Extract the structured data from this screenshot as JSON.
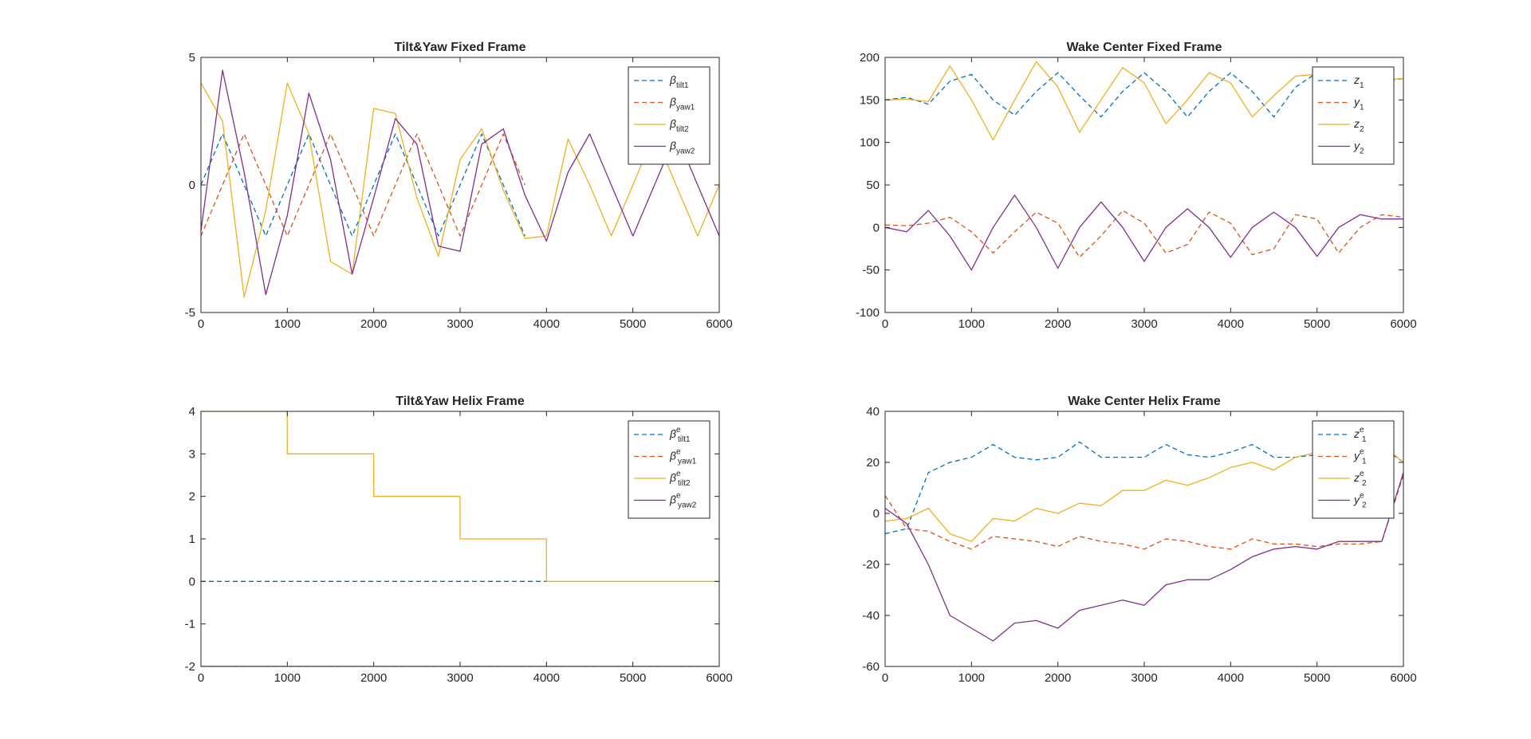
{
  "colors": {
    "blue": "#0072BD",
    "orange": "#D95319",
    "yellow": "#EDB120",
    "purple": "#7E2F8E",
    "axis": "#262626",
    "background": "#ffffff"
  },
  "chart_data": [
    {
      "type": "line",
      "title": "Tilt&Yaw Fixed Frame",
      "xlabel": "",
      "ylabel": "",
      "xlim": [
        0,
        6000
      ],
      "ylim": [
        -5,
        5
      ],
      "xticks": [
        "0",
        "1000",
        "2000",
        "3000",
        "4000",
        "5000",
        "6000"
      ],
      "yticks": [
        "-5",
        "0",
        "5"
      ],
      "grid": false,
      "legend_position": "top-right",
      "x": [
        0,
        250,
        500,
        750,
        1000,
        1250,
        1500,
        1750,
        2000,
        2250,
        2500,
        2750,
        3000,
        3250,
        3500,
        3750,
        4000,
        4250,
        4500,
        4750,
        5000,
        5250,
        5500,
        5750,
        6000
      ],
      "series": [
        {
          "legend": "β",
          "sub": "tilt1",
          "sup": "",
          "dash": true,
          "color": "blue",
          "values": [
            0,
            2,
            0,
            -2,
            0,
            2,
            0,
            -2,
            0,
            2,
            0,
            -2,
            0,
            2,
            0,
            -2,
            null,
            null,
            null,
            null,
            null,
            null,
            null,
            null,
            null
          ]
        },
        {
          "legend": "β",
          "sub": "yaw1",
          "sup": "",
          "dash": true,
          "color": "orange",
          "values": [
            -2,
            0,
            2,
            0,
            -2,
            0,
            2,
            0,
            -2,
            0,
            2,
            0,
            -2,
            0,
            2,
            0,
            null,
            null,
            null,
            null,
            null,
            null,
            null,
            null,
            null
          ]
        },
        {
          "legend": "β",
          "sub": "tilt2",
          "sup": "",
          "dash": false,
          "color": "yellow",
          "values": [
            4.0,
            2.5,
            -4.4,
            -1.0,
            4.0,
            2.0,
            -3.0,
            -3.5,
            3.0,
            2.8,
            -0.5,
            -2.8,
            1.0,
            2.2,
            -0.2,
            -2.1,
            -2.0,
            1.8,
            0.0,
            -2.0,
            0.0,
            2.0,
            0.0,
            -2.0,
            0.0
          ]
        },
        {
          "legend": "β",
          "sub": "yaw2",
          "sup": "",
          "dash": false,
          "color": "purple",
          "values": [
            -1.8,
            4.5,
            0.5,
            -4.3,
            -1.2,
            3.6,
            1.0,
            -3.5,
            -0.5,
            2.6,
            1.6,
            -2.4,
            -2.6,
            1.6,
            2.2,
            -0.4,
            -2.2,
            0.5,
            2.0,
            0.0,
            -2.0,
            0.0,
            2.0,
            0.0,
            -2.0
          ]
        }
      ]
    },
    {
      "type": "line",
      "title": "Wake Center Fixed Frame",
      "xlabel": "",
      "ylabel": "",
      "xlim": [
        0,
        6000
      ],
      "ylim": [
        -100,
        200
      ],
      "xticks": [
        "0",
        "1000",
        "2000",
        "3000",
        "4000",
        "5000",
        "6000"
      ],
      "yticks": [
        "-100",
        "-50",
        "0",
        "50",
        "100",
        "150",
        "200"
      ],
      "grid": false,
      "legend_position": "top-right",
      "x": [
        0,
        250,
        500,
        750,
        1000,
        1250,
        1500,
        1750,
        2000,
        2250,
        2500,
        2750,
        3000,
        3250,
        3500,
        3750,
        4000,
        4250,
        4500,
        4750,
        5000,
        5250,
        5500,
        5750,
        6000
      ],
      "series": [
        {
          "legend": "z",
          "sub": "1",
          "sup": "",
          "dash": true,
          "color": "blue",
          "values": [
            150,
            153,
            145,
            172,
            180,
            150,
            132,
            160,
            182,
            155,
            130,
            160,
            182,
            160,
            130,
            160,
            182,
            160,
            130,
            165,
            182,
            165,
            170,
            172,
            175
          ]
        },
        {
          "legend": "y",
          "sub": "1",
          "sup": "",
          "dash": true,
          "color": "orange",
          "values": [
            3,
            2,
            5,
            12,
            -5,
            -30,
            -5,
            18,
            5,
            -35,
            -10,
            20,
            5,
            -30,
            -20,
            18,
            5,
            -32,
            -25,
            15,
            10,
            -30,
            0,
            15,
            12
          ]
        },
        {
          "legend": "z",
          "sub": "2",
          "sup": "",
          "dash": false,
          "color": "yellow",
          "values": [
            150,
            151,
            148,
            190,
            150,
            103,
            150,
            195,
            165,
            112,
            150,
            188,
            170,
            122,
            150,
            182,
            170,
            130,
            155,
            178,
            180,
            162,
            172,
            174,
            175
          ]
        },
        {
          "legend": "y",
          "sub": "2",
          "sup": "",
          "dash": false,
          "color": "purple",
          "values": [
            0,
            -5,
            20,
            -10,
            -50,
            0,
            38,
            0,
            -48,
            0,
            30,
            0,
            -40,
            0,
            22,
            0,
            -35,
            0,
            18,
            0,
            -34,
            0,
            15,
            10,
            10
          ]
        }
      ]
    },
    {
      "type": "line",
      "title": "Tilt&Yaw Helix Frame",
      "xlabel": "",
      "ylabel": "",
      "xlim": [
        0,
        6000
      ],
      "ylim": [
        -2,
        4
      ],
      "xticks": [
        "0",
        "1000",
        "2000",
        "3000",
        "4000",
        "5000",
        "6000"
      ],
      "yticks": [
        "-2",
        "-1",
        "0",
        "1",
        "2",
        "3",
        "4"
      ],
      "grid": false,
      "legend_position": "top-right",
      "x": [
        0,
        999,
        1000,
        1999,
        2000,
        2999,
        3000,
        3999,
        4000,
        6000
      ],
      "series": [
        {
          "legend": "β",
          "sub": "tilt1",
          "sup": "e",
          "dash": true,
          "color": "blue",
          "values": [
            0,
            0,
            0,
            0,
            0,
            0,
            0,
            0,
            0,
            null
          ]
        },
        {
          "legend": "β",
          "sub": "yaw1",
          "sup": "e",
          "dash": true,
          "color": "orange",
          "values": [
            -2,
            -2,
            -2,
            -2,
            -2,
            -2,
            -2,
            -2,
            -2,
            -2
          ]
        },
        {
          "legend": "β",
          "sub": "tilt2",
          "sup": "e",
          "dash": false,
          "color": "yellow",
          "values": [
            4,
            4,
            3,
            3,
            2,
            2,
            1,
            1,
            0,
            0
          ]
        },
        {
          "legend": "β",
          "sub": "yaw2",
          "sup": "e",
          "dash": false,
          "color": "purple",
          "values": [
            -2,
            -2,
            -2,
            -2,
            -2,
            -2,
            -2,
            -2,
            -2,
            -2
          ]
        }
      ]
    },
    {
      "type": "line",
      "title": "Wake Center Helix Frame",
      "xlabel": "",
      "ylabel": "",
      "xlim": [
        0,
        6000
      ],
      "ylim": [
        -60,
        40
      ],
      "xticks": [
        "0",
        "1000",
        "2000",
        "3000",
        "4000",
        "5000",
        "6000"
      ],
      "yticks": [
        "-60",
        "-40",
        "-20",
        "0",
        "20",
        "40"
      ],
      "grid": false,
      "legend_position": "top-right",
      "x": [
        0,
        250,
        500,
        750,
        1000,
        1250,
        1500,
        1750,
        2000,
        2250,
        2500,
        2750,
        3000,
        3250,
        3500,
        3750,
        4000,
        4250,
        4500,
        4750,
        5000,
        5250,
        5500,
        5750,
        6000
      ],
      "series": [
        {
          "legend": "z",
          "sub": "1",
          "sup": "e",
          "dash": true,
          "color": "blue",
          "values": [
            -8,
            -6,
            16,
            20,
            22,
            27,
            22,
            21,
            22,
            28,
            22,
            22,
            22,
            27,
            23,
            22,
            24,
            27,
            22,
            22,
            23,
            22,
            25,
            26,
            20
          ]
        },
        {
          "legend": "y",
          "sub": "1",
          "sup": "e",
          "dash": true,
          "color": "orange",
          "values": [
            7,
            -6,
            -7,
            -11,
            -14,
            -9,
            -10,
            -11,
            -13,
            -9,
            -11,
            -12,
            -14,
            -10,
            -11,
            -13,
            -14,
            -10,
            -12,
            -12,
            -13,
            -12,
            -12,
            -11,
            15
          ]
        },
        {
          "legend": "z",
          "sub": "2",
          "sup": "e",
          "dash": false,
          "color": "yellow",
          "values": [
            -3,
            -2,
            2,
            -8,
            -11,
            -2,
            -3,
            2,
            0,
            4,
            3,
            9,
            9,
            13,
            11,
            14,
            18,
            20,
            17,
            22,
            24,
            22,
            25,
            27,
            20
          ]
        },
        {
          "legend": "y",
          "sub": "2",
          "sup": "e",
          "dash": false,
          "color": "purple",
          "values": [
            2,
            -4,
            -20,
            -40,
            -45,
            -50,
            -43,
            -42,
            -45,
            -38,
            -36,
            -34,
            -36,
            -28,
            -26,
            -26,
            -22,
            -17,
            -14,
            -13,
            -14,
            -11,
            -11,
            -11,
            16
          ]
        }
      ]
    }
  ]
}
